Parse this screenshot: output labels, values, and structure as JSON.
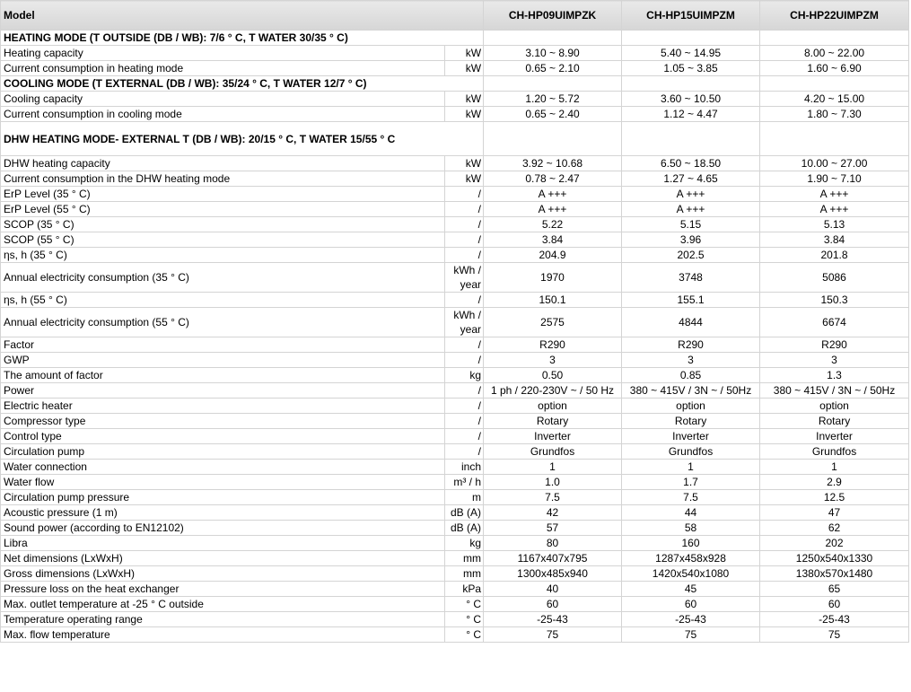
{
  "table": {
    "header": {
      "title": "Model",
      "models": [
        "CH-HP09UIMPZK",
        "CH-HP15UIMPZM",
        "CH-HP22UIMPZM"
      ]
    },
    "rows": [
      {
        "section": "HEATING MODE (T OUTSIDE (DB / WB): 7/6 ° C, T WATER 30/35 ° C)"
      },
      {
        "label": "Heating capacity",
        "unit": "kW",
        "values": [
          "3.10 ~ 8.90",
          "5.40 ~ 14.95",
          "8.00 ~ 22.00"
        ]
      },
      {
        "label": "Current consumption in heating mode",
        "unit": "kW",
        "values": [
          "0.65 ~ 2.10",
          "1.05 ~ 3.85",
          "1.60 ~ 6.90"
        ]
      },
      {
        "section": "COOLING MODE (T EXTERNAL (DB / WB): 35/24 ° C, T WATER 12/7 ° C)"
      },
      {
        "label": "Cooling capacity",
        "unit": "kW",
        "values": [
          "1.20 ~ 5.72",
          "3.60 ~ 10.50",
          "4.20 ~ 15.00"
        ]
      },
      {
        "label": "Current consumption in cooling mode",
        "unit": "kW",
        "values": [
          "0.65 ~ 2.40",
          "1.12 ~ 4.47",
          "1.80 ~ 7.30"
        ]
      },
      {
        "section": "DHW HEATING MODE- EXTERNAL T (DB / WB): 20/15 ° C, T WATER 15/55 ° C"
      },
      {
        "label": "DHW heating capacity",
        "unit": "kW",
        "values": [
          "3.92 ~ 10.68",
          "6.50 ~ 18.50",
          "10.00 ~ 27.00"
        ]
      },
      {
        "label": "Current consumption in the DHW heating mode",
        "unit": "kW",
        "values": [
          "0.78 ~ 2.47",
          "1.27 ~ 4.65",
          "1.90 ~ 7.10"
        ]
      },
      {
        "label": "ErP Level (35 ° C)",
        "unit": "/",
        "values": [
          "A +++",
          "A +++",
          "A +++"
        ]
      },
      {
        "label": "ErP Level (55 ° C)",
        "unit": "/",
        "values": [
          "A +++",
          "A +++",
          "A +++"
        ]
      },
      {
        "label": "SCOP (35 ° C)",
        "unit": "/",
        "values": [
          "5.22",
          "5.15",
          "5.13"
        ]
      },
      {
        "label": "SCOP (55 ° C)",
        "unit": "/",
        "values": [
          "3.84",
          "3.96",
          "3.84"
        ]
      },
      {
        "label": "ηs, h (35 ° C)",
        "unit": "/",
        "values": [
          "204.9",
          "202.5",
          "201.8"
        ]
      },
      {
        "label": "Annual electricity consumption (35 ° C)",
        "unit": "kWh / year",
        "values": [
          "1970",
          "3748",
          "5086"
        ]
      },
      {
        "label": "ηs, h (55 ° C)",
        "unit": "/",
        "values": [
          "150.1",
          "155.1",
          "150.3"
        ]
      },
      {
        "label": "Annual electricity consumption (55 ° C)",
        "unit": "kWh / year",
        "values": [
          "2575",
          "4844",
          "6674"
        ]
      },
      {
        "label": "Factor",
        "unit": "/",
        "values": [
          "R290",
          "R290",
          "R290"
        ]
      },
      {
        "label": "GWP",
        "unit": "/",
        "values": [
          "3",
          "3",
          "3"
        ]
      },
      {
        "label": "The amount of factor",
        "unit": "kg",
        "values": [
          "0.50",
          "0.85",
          "1.3"
        ]
      },
      {
        "label": "Power",
        "unit": "/",
        "values": [
          "1 ph / 220-230V ~ / 50 Hz",
          "380 ~ 415V / 3N ~ / 50Hz",
          "380 ~ 415V / 3N ~ / 50Hz"
        ]
      },
      {
        "label": "Electric heater",
        "unit": "/",
        "values": [
          "option",
          "option",
          "option"
        ]
      },
      {
        "label": "Compressor type",
        "unit": "/",
        "values": [
          "Rotary",
          "Rotary",
          "Rotary"
        ]
      },
      {
        "label": "Control type",
        "unit": "/",
        "values": [
          "Inverter",
          "Inverter",
          "Inverter"
        ]
      },
      {
        "label": "Circulation pump",
        "unit": "/",
        "values": [
          "Grundfos",
          "Grundfos",
          "Grundfos"
        ]
      },
      {
        "label": "Water connection",
        "unit": "inch",
        "values": [
          "1",
          "1",
          "1"
        ]
      },
      {
        "label": "Water flow",
        "unit": "m³ / h",
        "values": [
          "1.0",
          "1.7",
          "2.9"
        ]
      },
      {
        "label": "Circulation pump pressure",
        "unit": "m",
        "values": [
          "7.5",
          "7.5",
          "12.5"
        ]
      },
      {
        "label": "Acoustic pressure (1 m)",
        "unit": "dB (A)",
        "values": [
          "42",
          "44",
          "47"
        ]
      },
      {
        "label": "Sound power (according to EN12102)",
        "unit": "dB (A)",
        "values": [
          "57",
          "58",
          "62"
        ]
      },
      {
        "label": "Libra",
        "unit": "kg",
        "values": [
          "80",
          "160",
          "202"
        ]
      },
      {
        "label": "Net dimensions (LxWxH)",
        "unit": "mm",
        "values": [
          "1167x407x795",
          "1287x458x928",
          "1250x540x1330"
        ]
      },
      {
        "label": "Gross dimensions (LxWxH)",
        "unit": "mm",
        "values": [
          "1300x485x940",
          "1420x540x1080",
          "1380x570x1480"
        ]
      },
      {
        "label": "Pressure loss on the heat exchanger",
        "unit": "kPa",
        "values": [
          "40",
          "45",
          "65"
        ]
      },
      {
        "label": "Max. outlet temperature at -25 ° C outside",
        "unit": "° C",
        "values": [
          "60",
          "60",
          "60"
        ]
      },
      {
        "label": "Temperature operating range",
        "unit": "° C",
        "values": [
          "-25-43",
          "-25-43",
          "-25-43"
        ]
      },
      {
        "label": "Max. flow temperature",
        "unit": "° C",
        "values": [
          "75",
          "75",
          "75"
        ]
      }
    ]
  }
}
